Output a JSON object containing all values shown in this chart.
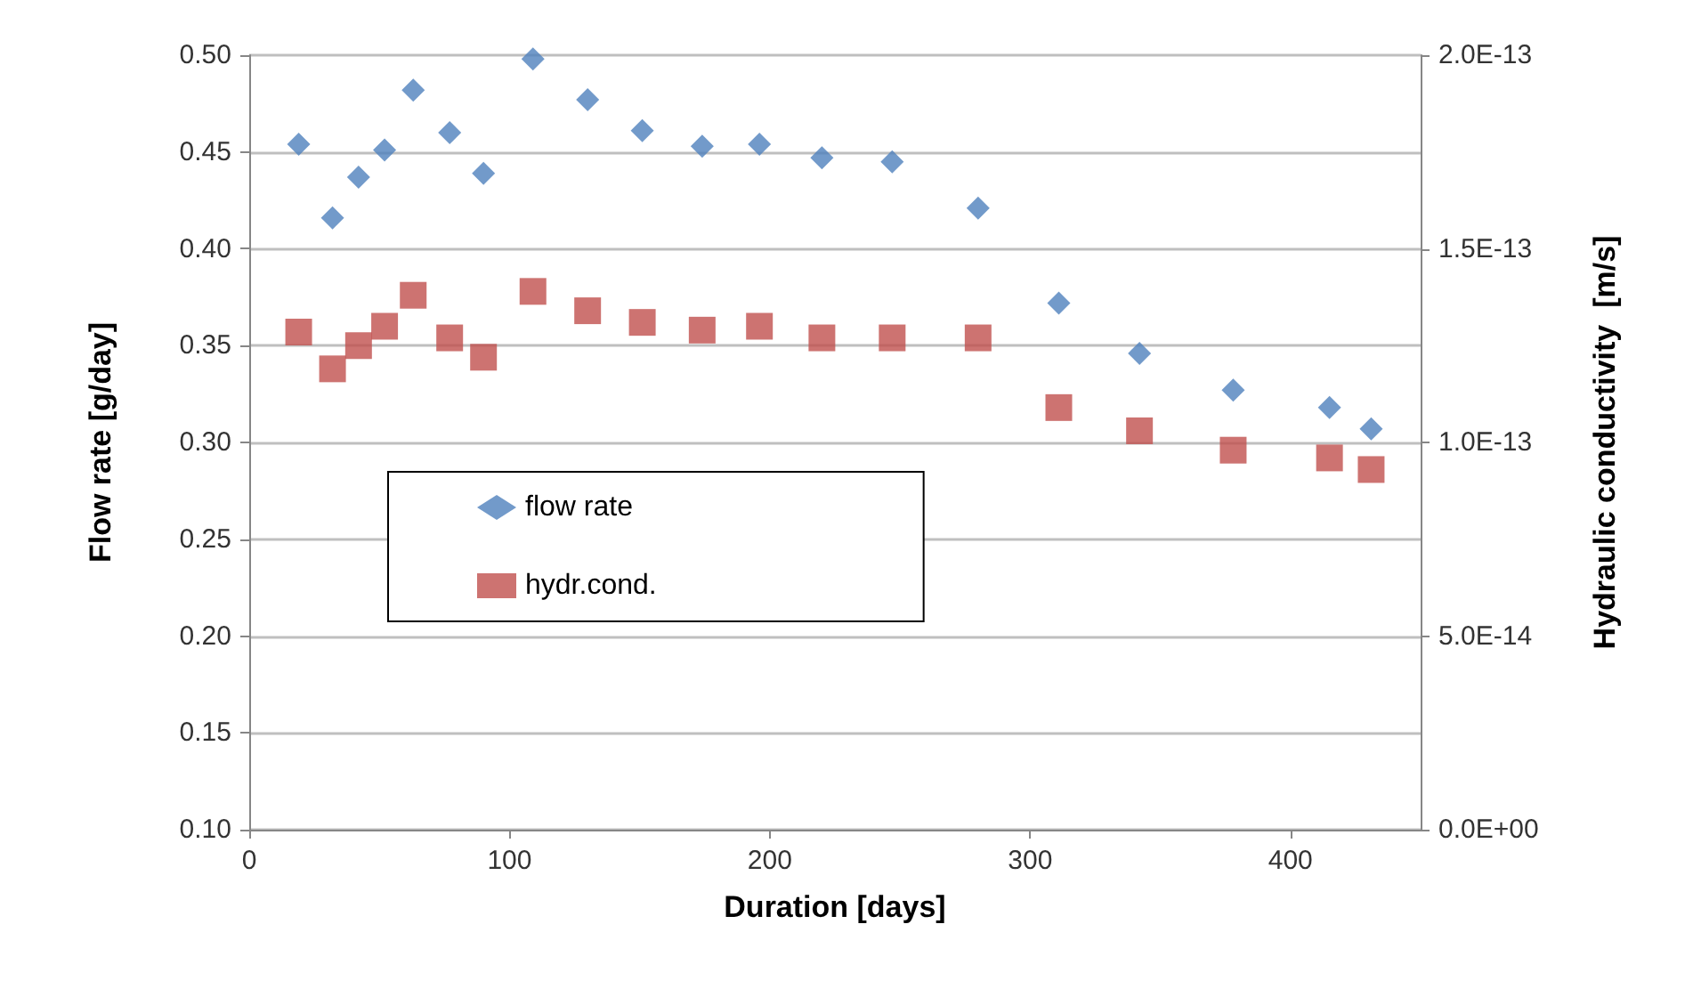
{
  "chart_data": {
    "type": "scatter",
    "xlabel": "Duration [days]",
    "ylabel": "Flow rate [g/day]",
    "y2label": "Hydraulic conductivity  [m/s]",
    "x": [
      19,
      32,
      42,
      52,
      63,
      77,
      90,
      109,
      130,
      151,
      174,
      196,
      220,
      247,
      280,
      311,
      342,
      378,
      415,
      431
    ],
    "series": [
      {
        "name": "flow rate",
        "color": "#4f81bd",
        "marker": "diamond",
        "values": [
          0.454,
          0.416,
          0.437,
          0.451,
          0.482,
          0.46,
          0.439,
          0.498,
          0.477,
          0.461,
          0.453,
          0.454,
          0.447,
          0.445,
          0.421,
          0.372,
          0.346,
          0.327,
          0.318,
          0.307
        ]
      },
      {
        "name": "hydr.cond.",
        "color": "#c0504d",
        "marker": "square",
        "axis": "y2",
        "values": [
          1.285e-13,
          1.19e-13,
          1.25e-13,
          1.3e-13,
          1.38e-13,
          1.27e-13,
          1.22e-13,
          1.39e-13,
          1.34e-13,
          1.31e-13,
          1.29e-13,
          1.3e-13,
          1.27e-13,
          1.27e-13,
          1.27e-13,
          1.09e-13,
          1.03e-13,
          9.8e-14,
          9.6e-14,
          9.3e-14
        ]
      }
    ],
    "xlim": [
      0,
      450
    ],
    "xticks": [
      0,
      100,
      200,
      300,
      400
    ],
    "ylim": [
      0.1,
      0.5
    ],
    "yticks": [
      {
        "value": 0.1,
        "label": "0.10"
      },
      {
        "value": 0.15,
        "label": "0.15"
      },
      {
        "value": 0.2,
        "label": "0.20"
      },
      {
        "value": 0.25,
        "label": "0.25"
      },
      {
        "value": 0.3,
        "label": "0.30"
      },
      {
        "value": 0.35,
        "label": "0.35"
      },
      {
        "value": 0.4,
        "label": "0.40"
      },
      {
        "value": 0.45,
        "label": "0.45"
      },
      {
        "value": 0.5,
        "label": "0.50"
      }
    ],
    "y2lim": [
      0,
      2e-13
    ],
    "y2ticks": [
      {
        "value": 0,
        "label": "0.0E+00"
      },
      {
        "value": 5e-14,
        "label": "5.0E-14"
      },
      {
        "value": 1e-13,
        "label": "1.0E-13"
      },
      {
        "value": 1.5e-13,
        "label": "1.5E-13"
      },
      {
        "value": 2e-13,
        "label": "2.0E-13"
      }
    ],
    "grid": "y",
    "legend": "left"
  }
}
